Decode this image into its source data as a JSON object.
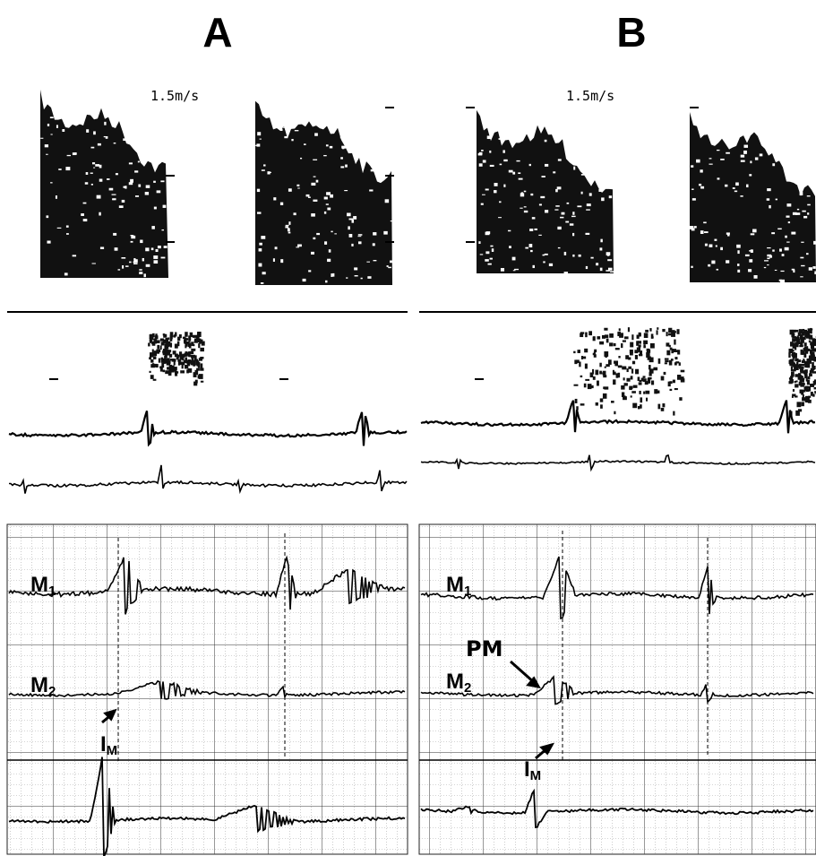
{
  "panels": [
    {
      "label": "A",
      "velocity_scale": "1.5m/s",
      "channels": [
        {
          "main": "M",
          "sub": "1"
        },
        {
          "main": "M",
          "sub": "2"
        }
      ],
      "markers": [
        {
          "main": "I",
          "sub": "M"
        }
      ]
    },
    {
      "label": "B",
      "velocity_scale": "1.5m/s",
      "channels": [
        {
          "main": "M",
          "sub": "1"
        },
        {
          "main": "M",
          "sub": "2"
        }
      ],
      "markers": [
        {
          "main": "PM"
        },
        {
          "main": "I",
          "sub": "M"
        }
      ]
    }
  ]
}
